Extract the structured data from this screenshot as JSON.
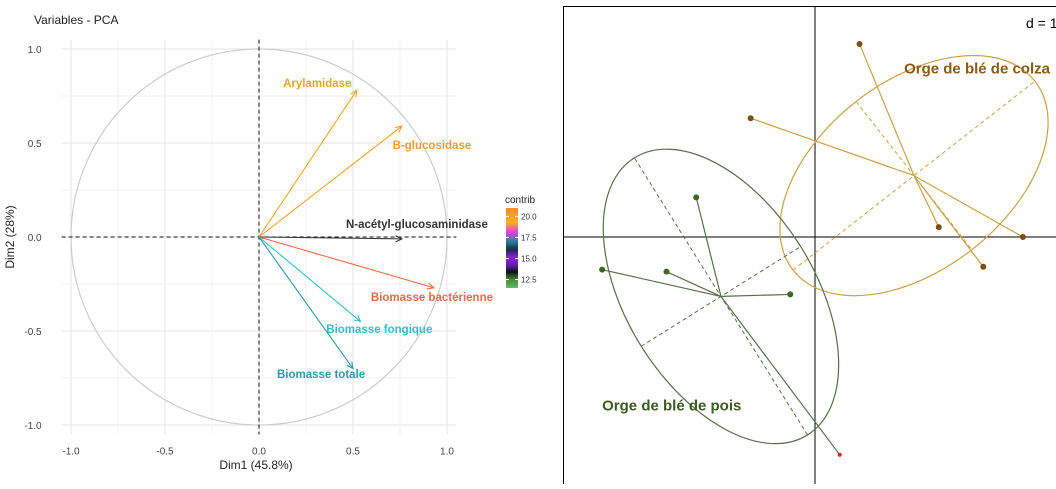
{
  "chart_data": [
    {
      "type": "scatter",
      "title": "Variables - PCA",
      "xlabel": "Dim1 (45.8%)",
      "ylabel": "Dim2 (28%)",
      "xlim": [
        -1.05,
        1.05
      ],
      "ylim": [
        -1.05,
        1.05
      ],
      "xticks": [
        "-1.0",
        "-0.5",
        "0.0",
        "0.5",
        "1.0"
      ],
      "yticks": [
        "1.0",
        "0.5",
        "0.0",
        "-0.5",
        "-1.0"
      ],
      "tick_values": [
        -1.0,
        -0.5,
        0.0,
        0.5,
        1.0
      ],
      "grid": true,
      "legend": {
        "title": "contrib",
        "position": "right",
        "ticks": [
          "20.0",
          "17.5",
          "15.0",
          "12.5"
        ],
        "tick_values": [
          20.0,
          17.5,
          15.0,
          12.5
        ],
        "range": [
          11.5,
          21.0
        ]
      },
      "arrows": [
        {
          "label": "Arylamidase",
          "x": 0.52,
          "y": 0.78,
          "color": "#e8a82a",
          "label_x": 0.31,
          "label_y": 0.82
        },
        {
          "label": "B-glucosidase",
          "x": 0.76,
          "y": 0.59,
          "color": "#f0a030",
          "label_x": 0.92,
          "label_y": 0.49
        },
        {
          "label": "N-acétyl-glucosaminidase",
          "x": 0.76,
          "y": -0.01,
          "color": "#333333",
          "label_x": 0.84,
          "label_y": 0.07
        },
        {
          "label": "Biomasse bactérienne",
          "x": 0.93,
          "y": -0.27,
          "color": "#ef6a48",
          "label_x": 0.92,
          "label_y": -0.32
        },
        {
          "label": "Biomasse fongique",
          "x": 0.54,
          "y": -0.45,
          "color": "#3bbccc",
          "label_x": 0.64,
          "label_y": -0.49
        },
        {
          "label": "Biomasse totale",
          "x": 0.5,
          "y": -0.7,
          "color": "#2f9aa8",
          "label_x": 0.33,
          "label_y": -0.73
        }
      ]
    },
    {
      "type": "scatter",
      "corner_label": "d = 1",
      "groups": [
        {
          "name": "Orge de blé de colza",
          "color": "#c9a24a",
          "point_color": "#7a5010",
          "center": [
            1.0,
            0.62
          ],
          "points": [
            [
              0.45,
              1.95
            ],
            [
              -0.65,
              1.2
            ],
            [
              1.25,
              0.1
            ],
            [
              2.1,
              0.0
            ],
            [
              1.7,
              -0.3
            ]
          ],
          "ellipse": {
            "rx": 1.55,
            "ry": 0.95,
            "angle": -38
          },
          "label_pos": [
            0.9,
            1.65
          ]
        },
        {
          "name": "Orge de blé de pois",
          "color": "#5a6e4a",
          "point_color": "#3a6a22",
          "center": [
            -0.95,
            -0.6
          ],
          "points": [
            [
              -1.2,
              0.4
            ],
            [
              -2.15,
              -0.33
            ],
            [
              -1.5,
              -0.35
            ],
            [
              -0.25,
              -0.58
            ],
            [
              0.25,
              -2.2
            ]
          ],
          "ellipse": {
            "rx": 1.65,
            "ry": 0.95,
            "angle": -122
          },
          "label_pos": [
            -2.15,
            -1.75
          ],
          "outlier_index": 4,
          "outlier_color": "#e02020"
        }
      ]
    }
  ]
}
